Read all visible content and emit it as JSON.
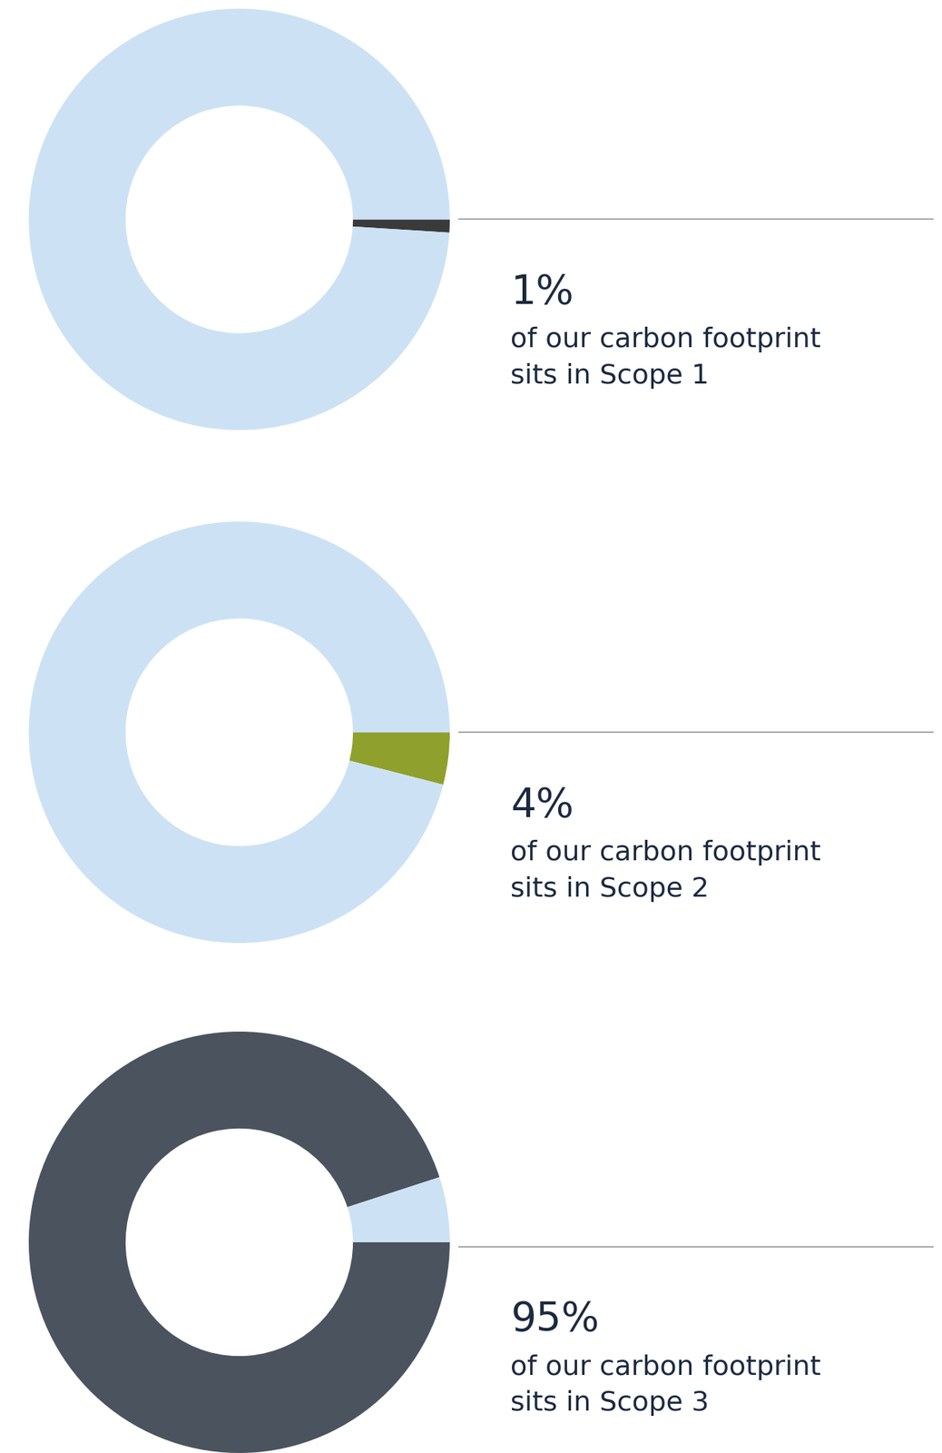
{
  "chart_data": [
    {
      "type": "pie",
      "values": [
        1,
        99
      ],
      "value_labels": [
        "1%",
        null
      ],
      "colors": [
        "#3a3a3a",
        "#cce2f4"
      ],
      "data_labels": true,
      "annotation": "of our carbon footprint sits in Scope 1"
    },
    {
      "type": "pie",
      "values": [
        4,
        96
      ],
      "value_labels": [
        "4%",
        null
      ],
      "colors": [
        "#8fa02c",
        "#cce2f4"
      ],
      "data_labels": true,
      "annotation": "of our carbon footprint sits in Scope 2"
    },
    {
      "type": "pie",
      "values": [
        95,
        5
      ],
      "value_labels": [
        "95%",
        null
      ],
      "colors": [
        "#4a535e",
        "#cce2f4"
      ],
      "data_labels": true,
      "annotation": "of our carbon footprint sits in Scope 3"
    }
  ]
}
